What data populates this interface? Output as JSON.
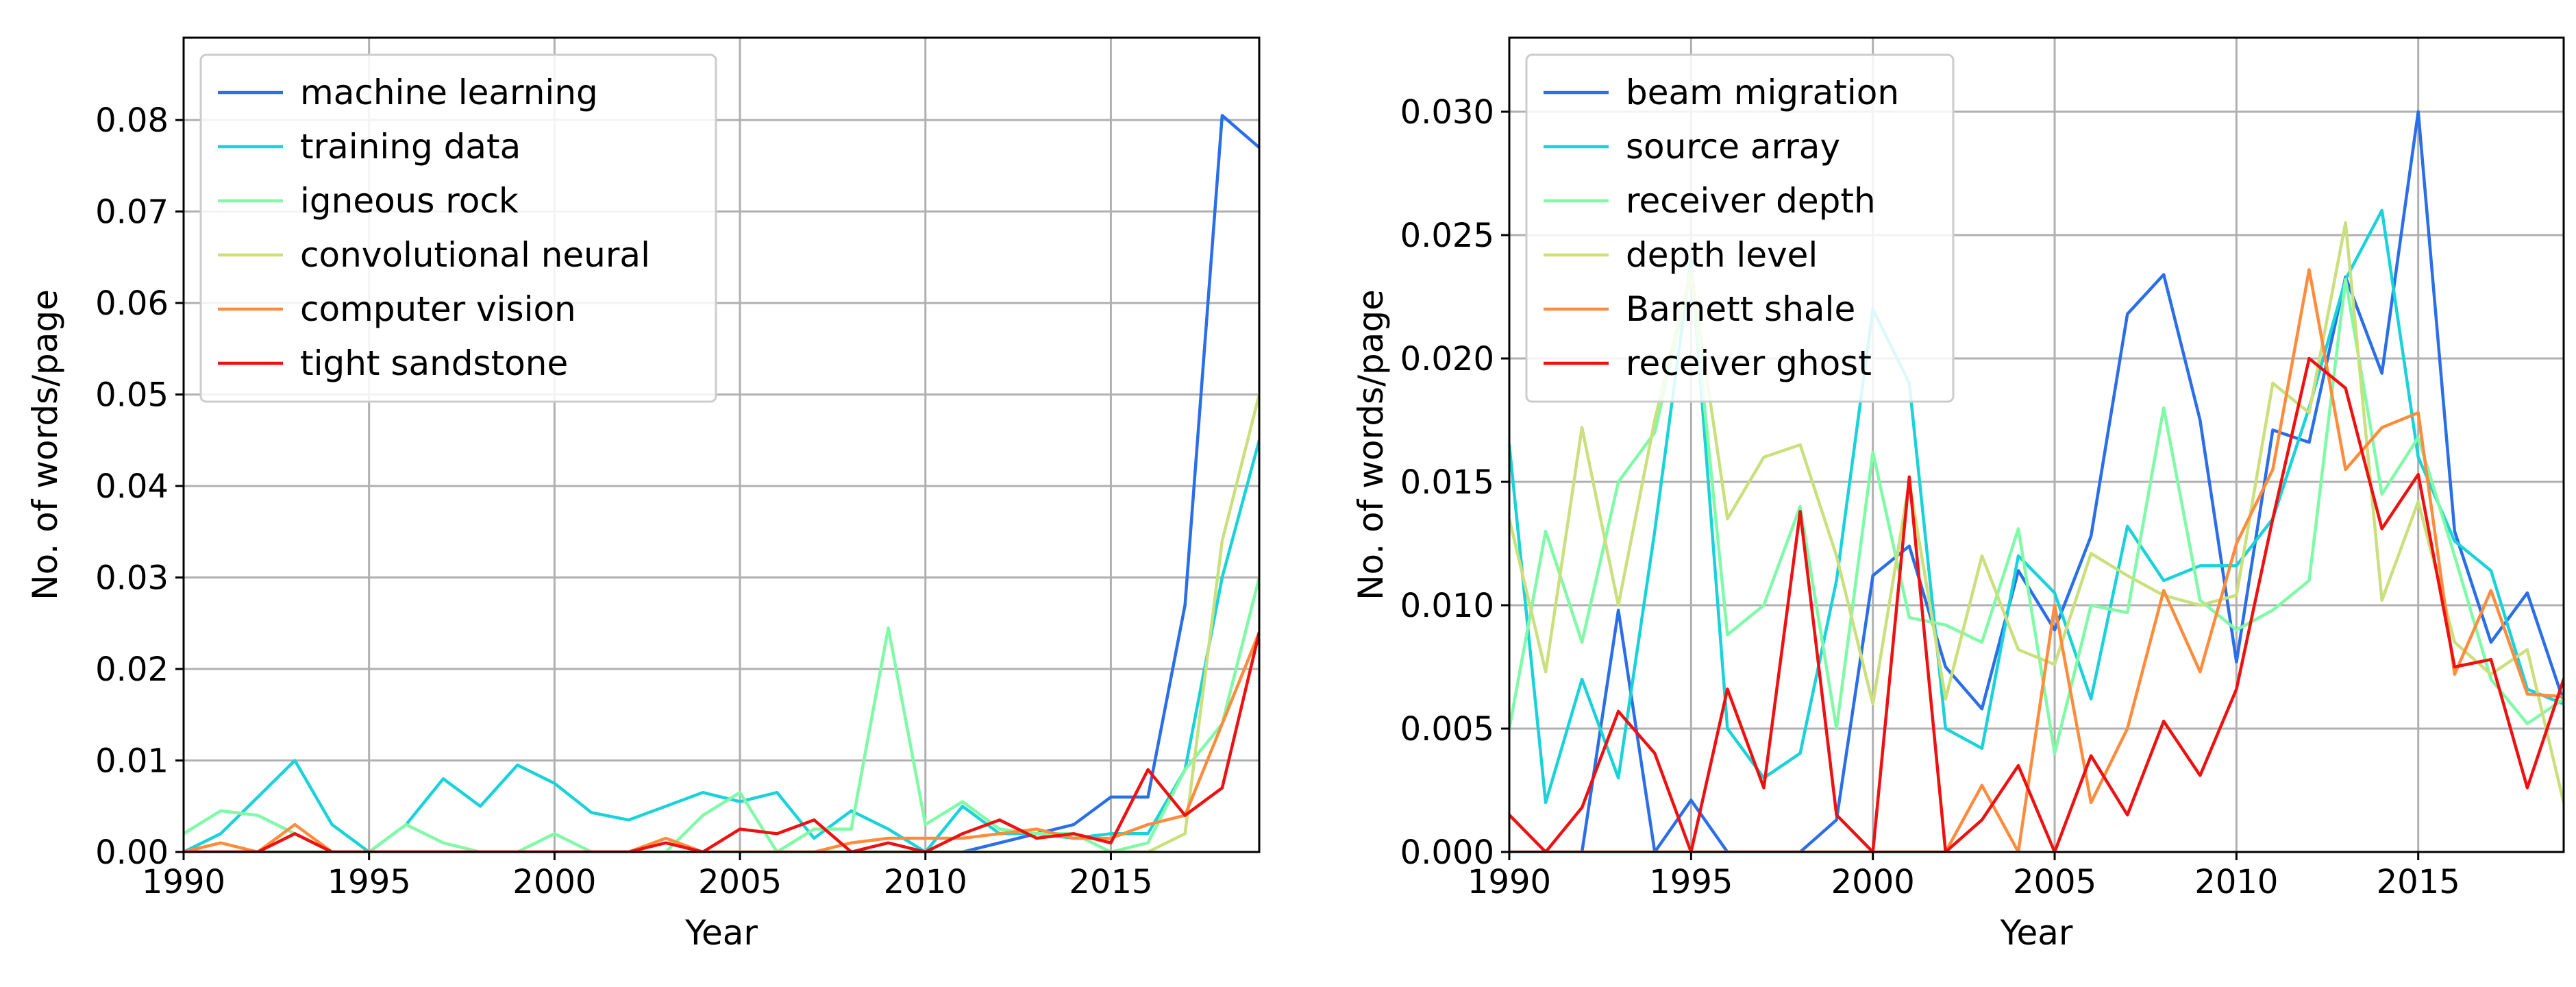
{
  "chart_data": [
    {
      "type": "line",
      "title": "",
      "xlabel": "Year",
      "ylabel": "No. of words/page",
      "xlim": [
        1990,
        2019
      ],
      "ylim": [
        0,
        0.089
      ],
      "x": [
        1990,
        1991,
        1992,
        1993,
        1994,
        1995,
        1996,
        1997,
        1998,
        1999,
        2000,
        2001,
        2002,
        2003,
        2004,
        2005,
        2006,
        2007,
        2008,
        2009,
        2010,
        2011,
        2012,
        2013,
        2014,
        2015,
        2016,
        2017,
        2018,
        2019
      ],
      "xticks": [
        1990,
        1995,
        2000,
        2005,
        2010,
        2015
      ],
      "xtick_labels": [
        "1990",
        "1995",
        "2000",
        "2005",
        "2010",
        "2015"
      ],
      "yticks": [
        0,
        0.01,
        0.02,
        0.03,
        0.04,
        0.05,
        0.06,
        0.07,
        0.08
      ],
      "ytick_labels": [
        "0.00",
        "0.01",
        "0.02",
        "0.03",
        "0.04",
        "0.05",
        "0.06",
        "0.07",
        "0.08"
      ],
      "grid": true,
      "legend_position": "top-left",
      "series": [
        {
          "name": "machine learning",
          "color": "#2a6ee8",
          "values": [
            0,
            0,
            0,
            0,
            0,
            0,
            0,
            0,
            0,
            0,
            0,
            0,
            0,
            0,
            0,
            0,
            0,
            0,
            0,
            0,
            0,
            0,
            0.001,
            0.002,
            0.003,
            0.006,
            0.006,
            0.027,
            0.0805,
            0.077
          ]
        },
        {
          "name": "training data",
          "color": "#1ad2d9",
          "values": [
            0,
            0.002,
            0.006,
            0.01,
            0.003,
            0,
            0.003,
            0.008,
            0.005,
            0.0095,
            0.0075,
            0.0043,
            0.0035,
            0.005,
            0.0065,
            0.0055,
            0.0065,
            0.0015,
            0.0045,
            0.0025,
            0,
            0.005,
            0.002,
            0.002,
            0.0015,
            0.002,
            0.002,
            0.009,
            0.03,
            0.045
          ]
        },
        {
          "name": "igneous rock",
          "color": "#7ffaa6",
          "values": [
            0.002,
            0.0045,
            0.004,
            0.002,
            0,
            0,
            0.003,
            0.001,
            0,
            0,
            0.002,
            0,
            0,
            0,
            0.004,
            0.0065,
            0,
            0.0025,
            0.0025,
            0.0245,
            0.003,
            0.0055,
            0.0025,
            0.002,
            0.002,
            0,
            0.001,
            0.009,
            0.014,
            0.03
          ]
        },
        {
          "name": "convolutional neural",
          "color": "#c9e07c",
          "values": [
            0,
            0,
            0,
            0,
            0,
            0,
            0,
            0,
            0,
            0,
            0,
            0,
            0,
            0,
            0,
            0,
            0,
            0,
            0,
            0,
            0,
            0,
            0,
            0,
            0,
            0,
            0,
            0.002,
            0.034,
            0.05
          ]
        },
        {
          "name": "computer vision",
          "color": "#ff8c3d",
          "values": [
            0,
            0.001,
            0,
            0.003,
            0,
            0,
            0,
            0,
            0,
            0,
            0,
            0,
            0,
            0.0015,
            0,
            0,
            0,
            0,
            0.001,
            0.0015,
            0.0015,
            0.0015,
            0.002,
            0.0025,
            0.0015,
            0.0015,
            0.003,
            0.004,
            0.014,
            0.024
          ]
        },
        {
          "name": "tight sandstone",
          "color": "#ee1111",
          "values": [
            0,
            0,
            0,
            0.002,
            0,
            0,
            0,
            0,
            0,
            0,
            0,
            0,
            0,
            0.001,
            0,
            0.0025,
            0.002,
            0.0035,
            0,
            0.001,
            0,
            0.002,
            0.0035,
            0.0015,
            0.002,
            0.001,
            0.009,
            0.004,
            0.007,
            0.024
          ]
        }
      ]
    },
    {
      "type": "line",
      "title": "",
      "xlabel": "Year",
      "ylabel": "No. of words/page",
      "xlim": [
        1990,
        2019
      ],
      "ylim": [
        0,
        0.033
      ],
      "x": [
        1990,
        1991,
        1992,
        1993,
        1994,
        1995,
        1996,
        1997,
        1998,
        1999,
        2000,
        2001,
        2002,
        2003,
        2004,
        2005,
        2006,
        2007,
        2008,
        2009,
        2010,
        2011,
        2012,
        2013,
        2014,
        2015,
        2016,
        2017,
        2018,
        2019
      ],
      "xticks": [
        1990,
        1995,
        2000,
        2005,
        2010,
        2015
      ],
      "xtick_labels": [
        "1990",
        "1995",
        "2000",
        "2005",
        "2010",
        "2015"
      ],
      "yticks": [
        0,
        0.005,
        0.01,
        0.015,
        0.02,
        0.025,
        0.03
      ],
      "ytick_labels": [
        "0.000",
        "0.005",
        "0.010",
        "0.015",
        "0.020",
        "0.025",
        "0.030"
      ],
      "grid": true,
      "legend_position": "top-left",
      "series": [
        {
          "name": "beam migration",
          "color": "#2a6ee8",
          "values": [
            0,
            0,
            0,
            0.0098,
            0,
            0.0021,
            0,
            0,
            0,
            0.0013,
            0.0112,
            0.0124,
            0.0075,
            0.0058,
            0.0114,
            0.009,
            0.0128,
            0.0218,
            0.0234,
            0.0175,
            0.0077,
            0.0171,
            0.0166,
            0.0233,
            0.0194,
            0.03,
            0.013,
            0.0085,
            0.0105,
            0.0061
          ]
        },
        {
          "name": "source array",
          "color": "#1ad2d9",
          "values": [
            0.0165,
            0.002,
            0.007,
            0.003,
            0.013,
            0.024,
            0.005,
            0.003,
            0.004,
            0.011,
            0.022,
            0.019,
            0.005,
            0.0042,
            0.012,
            0.0105,
            0.0062,
            0.0132,
            0.011,
            0.0116,
            0.0116,
            0.0135,
            0.018,
            0.0232,
            0.026,
            0.016,
            0.0126,
            0.0114,
            0.0066,
            0.006
          ]
        },
        {
          "name": "receiver depth",
          "color": "#7ffaa6",
          "values": [
            0.005,
            0.013,
            0.0085,
            0.015,
            0.017,
            0.0235,
            0.0088,
            0.01,
            0.014,
            0.005,
            0.0162,
            0.0095,
            0.0092,
            0.0085,
            0.0131,
            0.004,
            0.01,
            0.0097,
            0.018,
            0.0102,
            0.009,
            0.0098,
            0.011,
            0.0232,
            0.0145,
            0.0168,
            0.012,
            0.007,
            0.0052,
            0.0062
          ]
        },
        {
          "name": "depth level",
          "color": "#c9e07c",
          "values": [
            0.0135,
            0.0073,
            0.0172,
            0.01,
            0.0175,
            0.0236,
            0.0135,
            0.016,
            0.0165,
            0.012,
            0.006,
            0.015,
            0.0062,
            0.012,
            0.0082,
            0.0076,
            0.0121,
            0.0112,
            0.0104,
            0.01,
            0.0104,
            0.019,
            0.0178,
            0.0255,
            0.0102,
            0.0142,
            0.0085,
            0.0072,
            0.0082,
            0.002
          ]
        },
        {
          "name": "Barnett shale",
          "color": "#ff8c3d",
          "values": [
            0,
            0,
            0,
            0,
            0,
            0,
            0,
            0,
            0,
            0,
            0,
            0,
            0,
            0.0027,
            0,
            0.01,
            0.002,
            0.005,
            0.0106,
            0.0073,
            0.0125,
            0.0155,
            0.0236,
            0.0155,
            0.0172,
            0.0178,
            0.0072,
            0.0106,
            0.0064,
            0.0063
          ]
        },
        {
          "name": "receiver ghost",
          "color": "#ee1111",
          "values": [
            0.0015,
            0,
            0.0018,
            0.0057,
            0.004,
            0,
            0.0066,
            0.0026,
            0.0138,
            0.0015,
            0,
            0.0152,
            0,
            0.0013,
            0.0035,
            0,
            0.0039,
            0.0015,
            0.0053,
            0.0031,
            0.0066,
            0.0135,
            0.02,
            0.0188,
            0.0131,
            0.0153,
            0.0075,
            0.0078,
            0.0026,
            0.007
          ]
        }
      ]
    }
  ]
}
